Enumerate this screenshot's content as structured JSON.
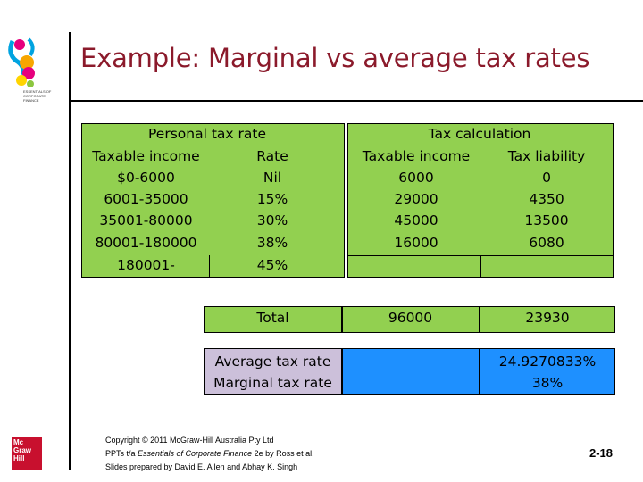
{
  "slide": {
    "title": "Example: Marginal vs average tax rates",
    "page_number": "2-18",
    "logo_text": "ESSENTIALS OF CORPORATE FINANCE",
    "publisher_logo": [
      "Mc",
      "Graw",
      "Hill"
    ]
  },
  "personal_tax": {
    "heading": "Personal tax rate",
    "col_income": "Taxable income",
    "col_rate": "Rate",
    "rows": [
      {
        "income": "$0-6000",
        "rate": "Nil"
      },
      {
        "income": "6001-35000",
        "rate": "15%"
      },
      {
        "income": "35001-80000",
        "rate": "30%"
      },
      {
        "income": "80001-180000",
        "rate": "38%"
      },
      {
        "income": "180001-",
        "rate": "45%"
      }
    ]
  },
  "tax_calc": {
    "heading": "Tax calculation",
    "col_income": "Taxable income",
    "col_liability": "Tax liability",
    "rows": [
      {
        "income": "6000",
        "liability": "0"
      },
      {
        "income": "29000",
        "liability": "4350"
      },
      {
        "income": "45000",
        "liability": "13500"
      },
      {
        "income": "16000",
        "liability": "6080"
      }
    ]
  },
  "totals": {
    "label": "Total",
    "income": "96000",
    "liability": "23930"
  },
  "rates": {
    "average_label": "Average tax rate",
    "marginal_label": "Marginal tax rate",
    "average_value": "24.9270833%",
    "marginal_value": "38%"
  },
  "copyright": {
    "line1": "Copyright © 2011 McGraw-Hill Australia Pty Ltd",
    "line2_prefix": "PPTs t/a ",
    "line2_italic": "Essentials of Corporate Finance",
    "line2_suffix": " 2e by Ross et al.",
    "line3": "Slides prepared by David E. Allen and Abhay K. Singh"
  },
  "colors": {
    "title": "#8b1a2b",
    "green": "#92d050",
    "blue": "#1e90ff",
    "lavender": "#ccc0da"
  }
}
